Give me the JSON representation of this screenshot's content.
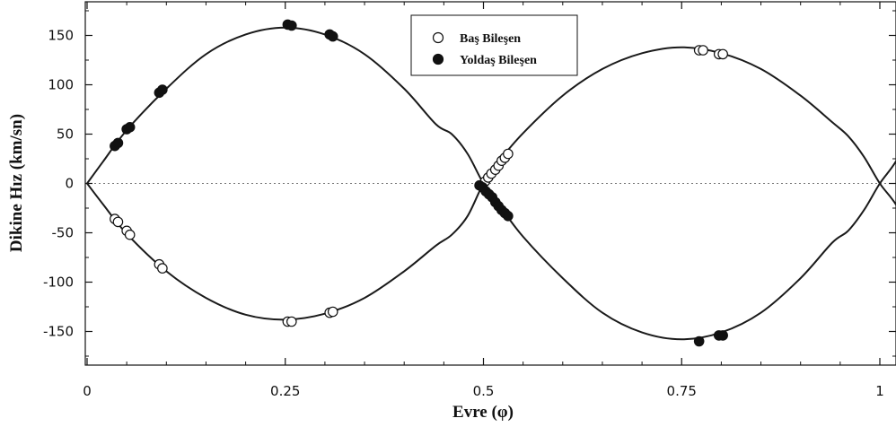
{
  "chart_data": {
    "type": "scatter",
    "xlabel": "Evre (φ)",
    "ylabel": "Dikine Hız (km/sn)",
    "xlim": [
      0,
      1.04
    ],
    "ylim": [
      -185,
      185
    ],
    "x_ticks": [
      0,
      0.25,
      0.5,
      0.75,
      1
    ],
    "x_tick_labels": [
      "0",
      "0.25",
      "0.5",
      "0.75",
      "1"
    ],
    "y_ticks": [
      -150,
      -100,
      -50,
      0,
      50,
      100,
      150
    ],
    "y_tick_labels": [
      "-150",
      "-100",
      "-50",
      "0",
      "50",
      "100",
      "150"
    ],
    "zero_line": true,
    "legend": {
      "position": "top-center",
      "entries": [
        {
          "label": "Baş Bileşen",
          "marker": "open-circle"
        },
        {
          "label": "Yoldaş Bileşen",
          "marker": "filled-circle"
        }
      ]
    },
    "series": [
      {
        "name": "Baş Bileşen",
        "marker": "open-circle",
        "color": "#111111",
        "points": [
          [
            0.035,
            -36
          ],
          [
            0.039,
            -39
          ],
          [
            0.05,
            -48
          ],
          [
            0.054,
            -52
          ],
          [
            0.091,
            -82
          ],
          [
            0.095,
            -86
          ],
          [
            0.253,
            -140
          ],
          [
            0.258,
            -140
          ],
          [
            0.306,
            -131
          ],
          [
            0.31,
            -130
          ],
          [
            0.498,
            -2
          ],
          [
            0.502,
            2
          ],
          [
            0.506,
            6
          ],
          [
            0.51,
            10
          ],
          [
            0.515,
            14
          ],
          [
            0.519,
            18
          ],
          [
            0.523,
            23
          ],
          [
            0.527,
            26
          ],
          [
            0.531,
            30
          ],
          [
            0.772,
            135
          ],
          [
            0.777,
            135
          ],
          [
            0.797,
            131
          ],
          [
            0.802,
            131
          ]
        ]
      },
      {
        "name": "Yoldaş Bileşen",
        "marker": "filled-circle",
        "color": "#111111",
        "points": [
          [
            0.035,
            38
          ],
          [
            0.039,
            41
          ],
          [
            0.05,
            55
          ],
          [
            0.054,
            57
          ],
          [
            0.091,
            92
          ],
          [
            0.095,
            95
          ],
          [
            0.253,
            161
          ],
          [
            0.258,
            160
          ],
          [
            0.306,
            151
          ],
          [
            0.31,
            149
          ],
          [
            0.495,
            -2
          ],
          [
            0.499,
            -4
          ],
          [
            0.503,
            -8
          ],
          [
            0.507,
            -11
          ],
          [
            0.511,
            -14
          ],
          [
            0.515,
            -19
          ],
          [
            0.519,
            -23
          ],
          [
            0.523,
            -27
          ],
          [
            0.527,
            -30
          ],
          [
            0.531,
            -33
          ],
          [
            0.772,
            -160
          ],
          [
            0.797,
            -154
          ],
          [
            0.802,
            -154
          ]
        ]
      }
    ],
    "model_curves": [
      {
        "name": "primary-fit",
        "style": "solid",
        "points": [
          [
            0,
            0
          ],
          [
            0.02,
            -21
          ],
          [
            0.05,
            -51
          ],
          [
            0.1,
            -89
          ],
          [
            0.15,
            -116
          ],
          [
            0.2,
            -133
          ],
          [
            0.25,
            -138
          ],
          [
            0.3,
            -132
          ],
          [
            0.35,
            -116
          ],
          [
            0.4,
            -89
          ],
          [
            0.44,
            -63
          ],
          [
            0.46,
            -52
          ],
          [
            0.48,
            -33
          ],
          [
            0.5,
            0
          ],
          [
            0.52,
            23
          ],
          [
            0.55,
            51
          ],
          [
            0.6,
            89
          ],
          [
            0.65,
            116
          ],
          [
            0.7,
            132
          ],
          [
            0.75,
            138
          ],
          [
            0.8,
            132
          ],
          [
            0.85,
            116
          ],
          [
            0.9,
            89
          ],
          [
            0.94,
            62
          ],
          [
            0.96,
            48
          ],
          [
            0.98,
            27
          ],
          [
            1.0,
            0
          ],
          [
            1.02,
            -21
          ],
          [
            1.04,
            -51
          ]
        ]
      },
      {
        "name": "secondary-fit",
        "style": "solid",
        "points": [
          [
            0,
            0
          ],
          [
            0.02,
            22
          ],
          [
            0.05,
            54
          ],
          [
            0.1,
            96
          ],
          [
            0.15,
            131
          ],
          [
            0.2,
            151
          ],
          [
            0.25,
            158
          ],
          [
            0.3,
            151
          ],
          [
            0.35,
            131
          ],
          [
            0.4,
            96
          ],
          [
            0.44,
            60
          ],
          [
            0.46,
            50
          ],
          [
            0.48,
            30
          ],
          [
            0.5,
            0
          ],
          [
            0.52,
            -22
          ],
          [
            0.55,
            -54
          ],
          [
            0.6,
            -96
          ],
          [
            0.65,
            -131
          ],
          [
            0.7,
            -151
          ],
          [
            0.75,
            -158
          ],
          [
            0.8,
            -151
          ],
          [
            0.85,
            -131
          ],
          [
            0.9,
            -96
          ],
          [
            0.94,
            -60
          ],
          [
            0.96,
            -48
          ],
          [
            0.98,
            -27
          ],
          [
            1.0,
            0
          ],
          [
            1.02,
            22
          ],
          [
            1.04,
            54
          ]
        ]
      }
    ]
  }
}
